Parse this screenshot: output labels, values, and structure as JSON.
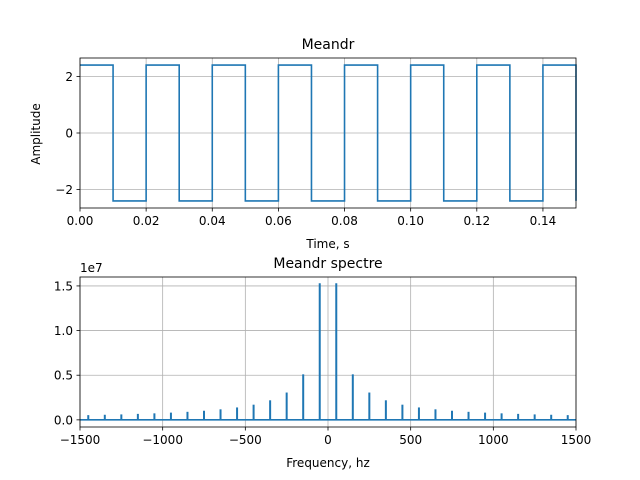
{
  "chart_data": [
    {
      "type": "line",
      "title": "Meandr",
      "xlabel": "Time, s",
      "ylabel": "Amplitude",
      "xlim": [
        0,
        0.15
      ],
      "ylim": [
        -2.65,
        2.65
      ],
      "xticks": [
        0.0,
        0.02,
        0.04,
        0.06,
        0.08,
        0.1,
        0.12,
        0.14
      ],
      "xtick_labels": [
        "0.00",
        "0.02",
        "0.04",
        "0.06",
        "0.08",
        "0.10",
        "0.12",
        "0.14"
      ],
      "yticks": [
        -2,
        0,
        2
      ],
      "ytick_labels": [
        "−2",
        "0",
        "2"
      ],
      "grid": true,
      "color": "#1f77b4",
      "series": [
        {
          "x": [
            0,
            0.01,
            0.01,
            0.02,
            0.02,
            0.03,
            0.03,
            0.04,
            0.04,
            0.05,
            0.05,
            0.06,
            0.06,
            0.07,
            0.07,
            0.08,
            0.08,
            0.09,
            0.09,
            0.1,
            0.1,
            0.11,
            0.11,
            0.12,
            0.12,
            0.13,
            0.13,
            0.14,
            0.14,
            0.15,
            0.15
          ],
          "y": [
            2.4,
            2.4,
            -2.4,
            -2.4,
            2.4,
            2.4,
            -2.4,
            -2.4,
            2.4,
            2.4,
            -2.4,
            -2.4,
            2.4,
            2.4,
            -2.4,
            -2.4,
            2.4,
            2.4,
            -2.4,
            -2.4,
            2.4,
            2.4,
            -2.4,
            -2.4,
            2.4,
            2.4,
            -2.4,
            -2.4,
            2.4,
            2.4,
            -2.4
          ]
        }
      ]
    },
    {
      "type": "bar",
      "title": "Meandr spectre",
      "xlabel": "Frequency, hz",
      "ylabel": "",
      "offset_label": "1e7",
      "xlim": [
        -1500,
        1500
      ],
      "ylim": [
        -0.08,
        1.6
      ],
      "xticks": [
        -1500,
        -1000,
        -500,
        0,
        500,
        1000,
        1500
      ],
      "xtick_labels": [
        "−1500",
        "−1000",
        "−500",
        "0",
        "500",
        "1000",
        "1500"
      ],
      "yticks": [
        0.0,
        0.5,
        1.0,
        1.5
      ],
      "ytick_labels": [
        "0.0",
        "0.5",
        "1.0",
        "1.5"
      ],
      "grid": true,
      "color": "#1f77b4",
      "series": [
        {
          "x": [
            -1450,
            -1350,
            -1250,
            -1150,
            -1050,
            -950,
            -850,
            -750,
            -650,
            -550,
            -450,
            -350,
            -250,
            -150,
            -50,
            50,
            150,
            250,
            350,
            450,
            550,
            650,
            750,
            850,
            950,
            1050,
            1150,
            1250,
            1350,
            1450
          ],
          "y": [
            0.053,
            0.057,
            0.061,
            0.067,
            0.073,
            0.081,
            0.09,
            0.102,
            0.118,
            0.139,
            0.17,
            0.219,
            0.306,
            0.51,
            1.53,
            1.53,
            0.51,
            0.306,
            0.219,
            0.17,
            0.139,
            0.118,
            0.102,
            0.09,
            0.081,
            0.073,
            0.067,
            0.061,
            0.057,
            0.053
          ]
        }
      ]
    }
  ]
}
